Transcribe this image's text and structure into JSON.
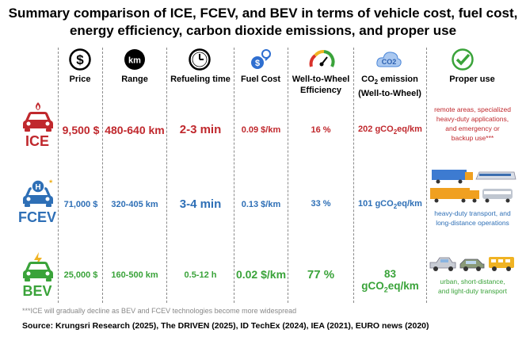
{
  "title_line1": "Summary comparison of ICE, FCEV, and BEV in terms of vehicle cost, fuel cost,",
  "title_line2": "energy efficiency, carbon dioxide emissions, and proper use",
  "columns": {
    "price": "Price",
    "range": "Range",
    "refueling": "Refueling time",
    "fuel_cost": "Fuel Cost",
    "efficiency": "Well-to-Wheel Efficiency",
    "co2_pre": "CO",
    "co2_sub": "2",
    "co2_post": " emission",
    "co2_line2": "(Well-to-Wheel)",
    "proper_use": "Proper use"
  },
  "icons": {
    "price": "dollar-icon",
    "range": "km-icon",
    "refueling": "clock-icon",
    "fuel_cost": "fuel-cost-icon",
    "efficiency": "gauge-icon",
    "co2": "co2-cloud-icon",
    "proper_use": "checkmark-icon"
  },
  "co2_icon_text": "CO2",
  "range_icon_text": "km",
  "rows": {
    "ice": {
      "label": "ICE",
      "color": "#c0282d",
      "price": "9,500 $",
      "range": "480-640 km",
      "refuel": "2-3 min",
      "fuel_cost": "0.09 $/km",
      "efficiency": "16 %",
      "co2_pre": "202 gCO",
      "co2_sub": "2",
      "co2_post": "eq/km",
      "use_lines": [
        "remote areas, specialized",
        "heavy-duty applications,",
        "and emergency or",
        "backup use***"
      ]
    },
    "fcev": {
      "label": "FCEV",
      "color": "#2e6fb6",
      "price": "71,000 $",
      "range": "320-405 km",
      "refuel": "3-4 min",
      "fuel_cost": "0.13 $/km",
      "efficiency": "33 %",
      "co2_pre": "101 gCO",
      "co2_sub": "2",
      "co2_post": "eq/km",
      "use_lines": [
        "heavy-duty transport, and",
        "long-distance operations"
      ]
    },
    "bev": {
      "label": "BEV",
      "color": "#3aa33a",
      "price": "25,000 $",
      "range": "160-500 km",
      "refuel": "0.5-12 h",
      "fuel_cost": "0.02 $/km",
      "efficiency": "77 %",
      "co2_pre": "83 gCO",
      "co2_sub": "2",
      "co2_post": "eq/km",
      "use_lines": [
        "urban, short-distance,",
        "and light-duty transport"
      ]
    }
  },
  "footnote": "***ICE will gradually decline as BEV and FCEV technologies become more widespread",
  "source": "Source: Krungsri Research (2025), The DRIVEN (2025), ID TechEx (2024), IEA (2021), EURO news (2020)"
}
